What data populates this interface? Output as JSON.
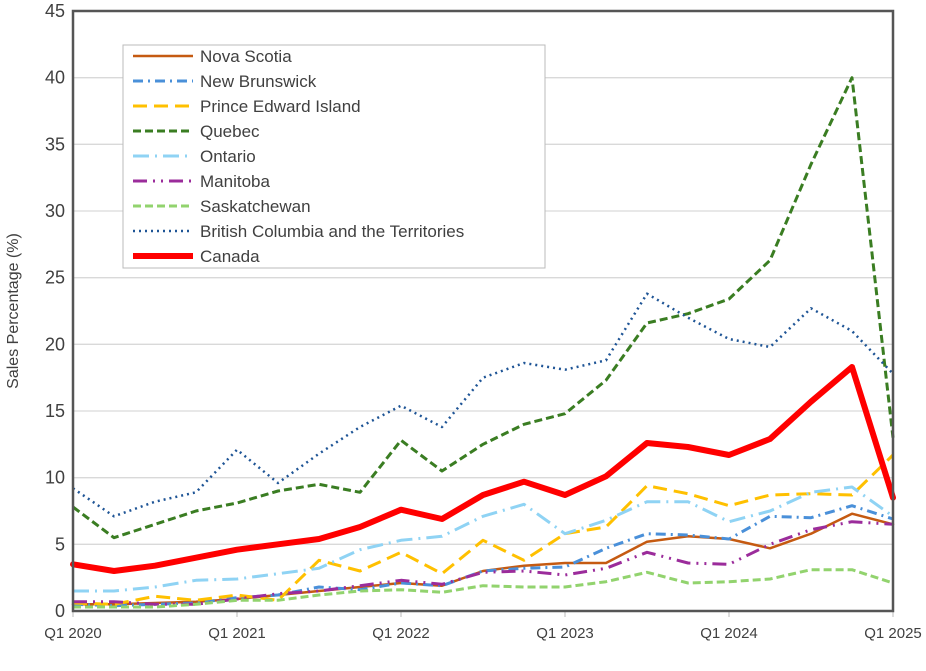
{
  "chart_data": {
    "type": "line",
    "title": "",
    "xlabel": "",
    "ylabel": "Sales Percentage (%)",
    "ylim": [
      0,
      45
    ],
    "yticks": [
      0,
      5,
      10,
      15,
      20,
      25,
      30,
      35,
      40,
      45
    ],
    "grid": true,
    "legend_position": "top-left",
    "categories": [
      "Q1 2020",
      "Q2 2020",
      "Q3 2020",
      "Q4 2020",
      "Q1 2021",
      "Q2 2021",
      "Q3 2021",
      "Q4 2021",
      "Q1 2022",
      "Q2 2022",
      "Q3 2022",
      "Q4 2022",
      "Q1 2023",
      "Q2 2023",
      "Q3 2023",
      "Q4 2023",
      "Q1 2024",
      "Q2 2024",
      "Q3 2024",
      "Q4 2024",
      "Q1 2025"
    ],
    "xtick_labels": [
      "Q1 2020",
      "Q1 2021",
      "Q1 2022",
      "Q1 2023",
      "Q1 2024",
      "Q1 2025"
    ],
    "series": [
      {
        "name": "Nova Scotia",
        "color": "#C55A11",
        "style": "solid",
        "values": [
          0.5,
          0.5,
          0.6,
          0.7,
          0.9,
          1.2,
          1.5,
          1.8,
          2.1,
          1.9,
          3.0,
          3.4,
          3.6,
          3.6,
          5.2,
          5.6,
          5.4,
          4.7,
          5.8,
          7.3,
          6.5
        ]
      },
      {
        "name": "New Brunswick",
        "color": "#4A90D9",
        "style": "dashdot",
        "values": [
          0.5,
          0.4,
          0.5,
          0.6,
          1.0,
          1.2,
          1.8,
          1.6,
          2.1,
          1.9,
          3.0,
          3.2,
          3.3,
          4.7,
          5.8,
          5.7,
          5.4,
          7.1,
          7.0,
          7.9,
          6.9
        ]
      },
      {
        "name": "Prince Edward Island",
        "color": "#FFC000",
        "style": "longdash",
        "values": [
          0.6,
          0.5,
          1.1,
          0.8,
          1.2,
          0.8,
          3.8,
          3.0,
          4.4,
          2.8,
          5.3,
          3.8,
          5.8,
          6.3,
          9.4,
          8.8,
          7.9,
          8.7,
          8.8,
          8.7,
          11.7
        ]
      },
      {
        "name": "Quebec",
        "color": "#3A7D22",
        "style": "dash",
        "values": [
          7.8,
          5.5,
          6.5,
          7.5,
          8.1,
          9.0,
          9.5,
          8.9,
          12.8,
          10.5,
          12.5,
          14.0,
          14.8,
          17.3,
          21.6,
          22.3,
          23.4,
          26.3,
          33.5,
          40.0,
          13.0
        ]
      },
      {
        "name": "Ontario",
        "color": "#8FD3F4",
        "style": "longdashdot",
        "values": [
          1.5,
          1.5,
          1.8,
          2.3,
          2.4,
          2.8,
          3.2,
          4.6,
          5.3,
          5.6,
          7.1,
          8.0,
          5.8,
          6.8,
          8.2,
          8.2,
          6.7,
          7.5,
          8.9,
          9.3,
          7.1
        ]
      },
      {
        "name": "Manitoba",
        "color": "#9B2C9B",
        "style": "dashdotdot",
        "values": [
          0.7,
          0.7,
          0.5,
          0.5,
          0.9,
          1.3,
          1.5,
          1.9,
          2.3,
          2.0,
          2.9,
          3.0,
          2.7,
          3.2,
          4.4,
          3.6,
          3.5,
          5.0,
          6.1,
          6.7,
          6.5
        ]
      },
      {
        "name": "Saskatchewan",
        "color": "#92D36E",
        "style": "dash",
        "values": [
          0.3,
          0.3,
          0.3,
          0.5,
          0.8,
          0.8,
          1.2,
          1.5,
          1.6,
          1.4,
          1.9,
          1.8,
          1.8,
          2.2,
          2.9,
          2.1,
          2.2,
          2.4,
          3.1,
          3.1,
          2.1
        ]
      },
      {
        "name": "British Columbia and the Territories",
        "color": "#1F5596",
        "style": "dot",
        "values": [
          9.2,
          7.1,
          8.2,
          8.9,
          12.1,
          9.6,
          11.8,
          13.8,
          15.4,
          13.8,
          17.5,
          18.6,
          18.1,
          18.8,
          23.8,
          22.0,
          20.4,
          19.8,
          22.7,
          21.0,
          17.8
        ]
      },
      {
        "name": "Canada",
        "color": "#FF0000",
        "style": "thick",
        "values": [
          3.5,
          3.0,
          3.4,
          4.0,
          4.6,
          5.0,
          5.4,
          6.3,
          7.6,
          6.9,
          8.7,
          9.7,
          8.7,
          10.1,
          12.6,
          12.3,
          11.7,
          12.9,
          15.7,
          18.3,
          8.5
        ]
      }
    ]
  }
}
